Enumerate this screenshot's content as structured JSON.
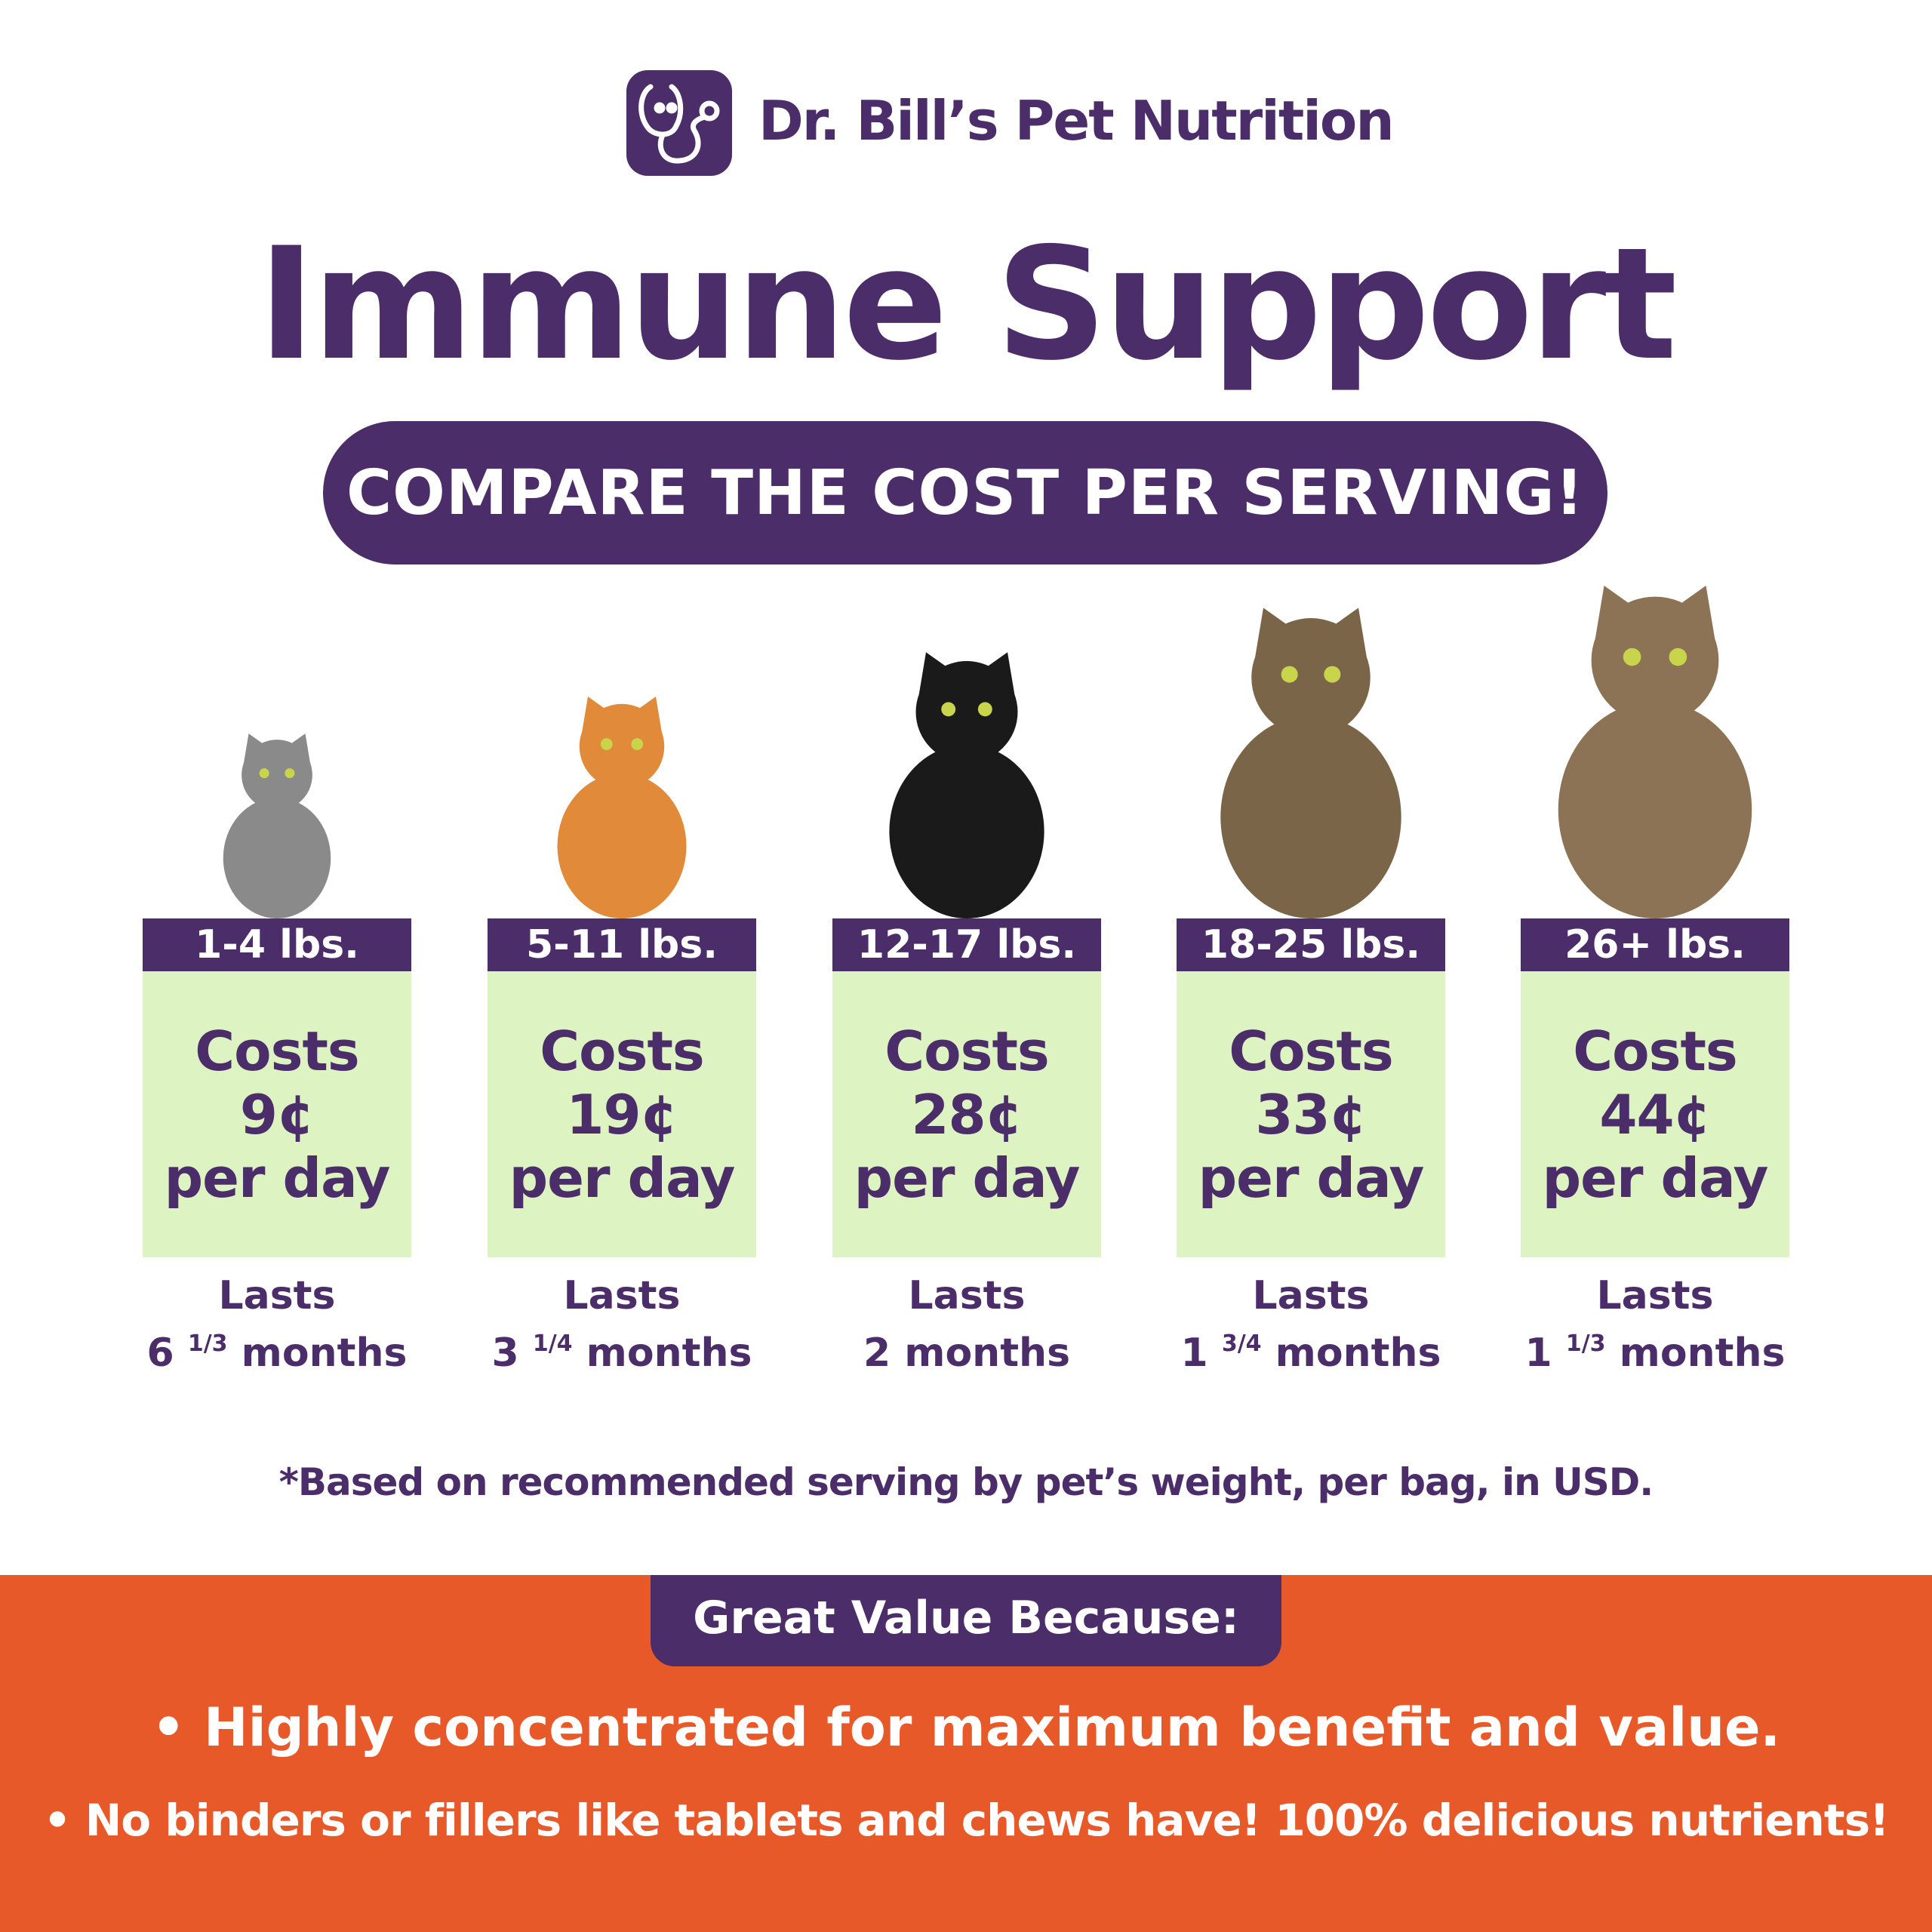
{
  "brand": {
    "name": "Dr. Bill’s Pet Nutrition",
    "logo_icon": "stethoscope-face-icon",
    "color": "#4a2d69"
  },
  "title": "Immune Support",
  "banner": "COMPARE THE COST PER SERVING!",
  "tiers": [
    {
      "weight": "1-4 lbs.",
      "costs_label": "Costs",
      "price": "9¢",
      "per": "per day",
      "lasts_label": "Lasts",
      "duration_whole": "6",
      "duration_fraction": "1/3",
      "duration_unit": "months",
      "cat_color": "#8a8a8a"
    },
    {
      "weight": "5-11 lbs.",
      "costs_label": "Costs",
      "price": "19¢",
      "per": "per day",
      "lasts_label": "Lasts",
      "duration_whole": "3",
      "duration_fraction": "1/4",
      "duration_unit": "months",
      "cat_color": "#e08a3a"
    },
    {
      "weight": "12-17 lbs.",
      "costs_label": "Costs",
      "price": "28¢",
      "per": "per day",
      "lasts_label": "Lasts",
      "duration_whole": "2",
      "duration_fraction": "",
      "duration_unit": "months",
      "cat_color": "#1a1a1a"
    },
    {
      "weight": "18-25 lbs.",
      "costs_label": "Costs",
      "price": "33¢",
      "per": "per day",
      "lasts_label": "Lasts",
      "duration_whole": "1",
      "duration_fraction": "3/4",
      "duration_unit": "months",
      "cat_color": "#7a6548"
    },
    {
      "weight": "26+ lbs.",
      "costs_label": "Costs",
      "price": "44¢",
      "per": "per day",
      "lasts_label": "Lasts",
      "duration_whole": "1",
      "duration_fraction": "1/3",
      "duration_unit": "months",
      "cat_color": "#8c7355"
    }
  ],
  "footnote": "*Based on recommended serving by pet’s weight, per bag, in USD.",
  "value": {
    "heading": "Great Value Because:",
    "bullets": [
      "• Highly concentrated for maximum benefit and value.",
      "• No binders or fillers like tablets and chews have! 100% delicious nutrients!"
    ],
    "band_color": "#e8592a"
  },
  "colors": {
    "card_header": "#4a2d69",
    "card_body": "#ddf3c2"
  }
}
